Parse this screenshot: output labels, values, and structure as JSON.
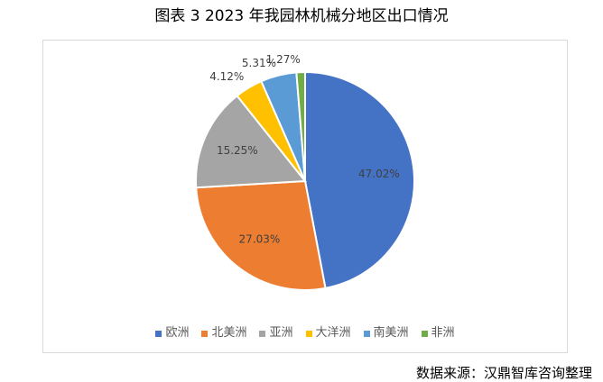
{
  "figure": {
    "caption": "图表 3 2023 年我园林机械分地区出口情况",
    "source": "数据来源：汉鼎智库咨询整理"
  },
  "chart_data": {
    "type": "pie",
    "categories": [
      "欧洲",
      "北美洲",
      "亚洲",
      "大洋洲",
      "南美洲",
      "非洲"
    ],
    "values": [
      47.02,
      27.03,
      15.25,
      4.12,
      5.31,
      1.27
    ],
    "labels": [
      "47.02%",
      "27.03%",
      "15.25%",
      "4.12%",
      "5.31%",
      "1.27%"
    ],
    "colors": [
      "#4472C4",
      "#ED7D31",
      "#A5A5A5",
      "#FFC000",
      "#5B9BD5",
      "#70AD47"
    ],
    "legend_position": "bottom",
    "start_angle_deg": 0,
    "direction": "clockwise"
  }
}
